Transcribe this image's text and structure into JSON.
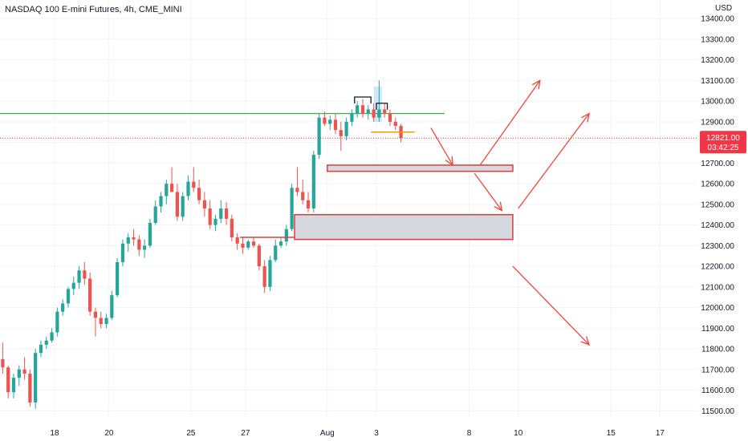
{
  "header": {
    "title": "NASDAQ 100 E-mini Futures, 4h, CME_MINI",
    "currency": "USD"
  },
  "colors": {
    "up": "#26a69a",
    "down": "#ef5350",
    "level": "#4caf50",
    "zone_fill": "#d1d4dc",
    "zone_border": "#e53935",
    "arrow": "#f44336",
    "price_tag": "#f23645"
  },
  "chart_data": {
    "type": "candlestick",
    "title": "NASDAQ 100 E-mini Futures, 4h, CME_MINI",
    "y_axis_labels": [
      "13400.00",
      "13300.00",
      "13200.00",
      "13100.00",
      "13000.00",
      "12900.00",
      "12800.00",
      "12700.00",
      "12600.00",
      "12500.00",
      "12400.00",
      "12300.00",
      "12200.00",
      "12100.00",
      "12000.00",
      "11900.00",
      "11800.00",
      "11700.00",
      "11600.00",
      "11500.00"
    ],
    "y_axis_values": [
      13400,
      13300,
      13200,
      13100,
      13000,
      12900,
      12800,
      12700,
      12600,
      12500,
      12400,
      12300,
      12200,
      12100,
      12000,
      11900,
      11800,
      11700,
      11600,
      11500
    ],
    "ylim": [
      11470,
      13490
    ],
    "x_tick_labels": [
      "18",
      "20",
      "25",
      "27",
      "Aug",
      "3",
      "8",
      "10",
      "15",
      "17"
    ],
    "x_tick_positions": [
      10,
      20,
      35,
      45,
      60,
      69,
      86,
      95,
      112,
      121
    ],
    "xlim": [
      0,
      128
    ],
    "current_price": "12821.00",
    "countdown": "03:42:25",
    "candles": [
      [
        11750,
        11830,
        11680,
        11710
      ],
      [
        11710,
        11720,
        11560,
        11590
      ],
      [
        11590,
        11680,
        11560,
        11660
      ],
      [
        11660,
        11720,
        11620,
        11700
      ],
      [
        11700,
        11760,
        11650,
        11680
      ],
      [
        11680,
        11700,
        11520,
        11540
      ],
      [
        11540,
        11800,
        11510,
        11780
      ],
      [
        11780,
        11840,
        11760,
        11820
      ],
      [
        11820,
        11860,
        11800,
        11840
      ],
      [
        11840,
        11900,
        11830,
        11880
      ],
      [
        11880,
        12000,
        11860,
        11980
      ],
      [
        11980,
        12040,
        11960,
        12020
      ],
      [
        12020,
        12100,
        12000,
        12090
      ],
      [
        12090,
        12150,
        12060,
        12120
      ],
      [
        12120,
        12200,
        12090,
        12180
      ],
      [
        12180,
        12220,
        12110,
        12140
      ],
      [
        12140,
        12170,
        11960,
        11980
      ],
      [
        11980,
        12000,
        11860,
        11950
      ],
      [
        11950,
        11980,
        11900,
        11920
      ],
      [
        11920,
        11970,
        11900,
        11950
      ],
      [
        11950,
        12080,
        11940,
        12060
      ],
      [
        12060,
        12240,
        12050,
        12220
      ],
      [
        12220,
        12330,
        12200,
        12310
      ],
      [
        12310,
        12360,
        12270,
        12340
      ],
      [
        12340,
        12380,
        12300,
        12330
      ],
      [
        12330,
        12350,
        12250,
        12280
      ],
      [
        12280,
        12330,
        12240,
        12300
      ],
      [
        12300,
        12430,
        12290,
        12410
      ],
      [
        12410,
        12520,
        12400,
        12490
      ],
      [
        12490,
        12560,
        12460,
        12540
      ],
      [
        12540,
        12620,
        12500,
        12600
      ],
      [
        12600,
        12680,
        12560,
        12560
      ],
      [
        12560,
        12600,
        12420,
        12440
      ],
      [
        12440,
        12560,
        12420,
        12540
      ],
      [
        12540,
        12640,
        12520,
        12610
      ],
      [
        12610,
        12680,
        12560,
        12580
      ],
      [
        12580,
        12620,
        12500,
        12520
      ],
      [
        12520,
        12560,
        12440,
        12480
      ],
      [
        12480,
        12520,
        12380,
        12400
      ],
      [
        12400,
        12450,
        12370,
        12430
      ],
      [
        12430,
        12520,
        12410,
        12480
      ],
      [
        12480,
        12510,
        12400,
        12430
      ],
      [
        12430,
        12450,
        12320,
        12340
      ],
      [
        12340,
        12360,
        12280,
        12310
      ],
      [
        12310,
        12340,
        12260,
        12290
      ],
      [
        12290,
        12330,
        12280,
        12320
      ],
      [
        12320,
        12340,
        12290,
        12300
      ],
      [
        12300,
        12310,
        12180,
        12200
      ],
      [
        12200,
        12230,
        12070,
        12100
      ],
      [
        12100,
        12250,
        12080,
        12230
      ],
      [
        12230,
        12330,
        12220,
        12300
      ],
      [
        12300,
        12340,
        12290,
        12320
      ],
      [
        12320,
        12400,
        12300,
        12380
      ],
      [
        12380,
        12600,
        12370,
        12580
      ],
      [
        12580,
        12680,
        12540,
        12560
      ],
      [
        12560,
        12620,
        12500,
        12520
      ],
      [
        12520,
        12560,
        12460,
        12480
      ],
      [
        12480,
        12760,
        12460,
        12740
      ],
      [
        12740,
        12940,
        12720,
        12920
      ],
      [
        12920,
        12950,
        12880,
        12890
      ],
      [
        12890,
        12930,
        12860,
        12910
      ],
      [
        12910,
        12940,
        12840,
        12860
      ],
      [
        12860,
        12900,
        12760,
        12830
      ],
      [
        12830,
        12920,
        12810,
        12900
      ],
      [
        12900,
        12960,
        12880,
        12940
      ],
      [
        12940,
        13000,
        12920,
        12980
      ],
      [
        12980,
        13010,
        12920,
        12940
      ],
      [
        12940,
        12980,
        12910,
        12960
      ],
      [
        12960,
        12990,
        12900,
        12920
      ],
      [
        12920,
        13100,
        12900,
        12960
      ],
      [
        12960,
        12990,
        12920,
        12940
      ],
      [
        12940,
        12960,
        12880,
        12900
      ],
      [
        12900,
        12920,
        12860,
        12880
      ],
      [
        12880,
        12890,
        12800,
        12821
      ]
    ],
    "candle_index_offset": 0,
    "horizontal_level": 12940,
    "zones": [
      {
        "x0": 60,
        "x1": 94,
        "y0": 12660,
        "y1": 12690
      },
      {
        "x0": 54,
        "x1": 94,
        "y0": 12330,
        "y1": 12450
      }
    ],
    "red_lines": [
      {
        "x0": 44,
        "x1": 54,
        "y": 12340
      },
      {
        "x0": 68,
        "x1": 76,
        "y": 12850
      }
    ],
    "black_marks": [
      {
        "x0": 65,
        "x1": 68,
        "y": 13020
      },
      {
        "x0": 69,
        "x1": 71,
        "y": 12990
      }
    ],
    "highlight": {
      "x0": 68.5,
      "x1": 70,
      "y0": 12900,
      "y1": 13070
    },
    "arrows": [
      {
        "x0": 79,
        "y0": 12870,
        "x1": 83,
        "y1": 12690
      },
      {
        "x0": 88,
        "y0": 12690,
        "x1": 99,
        "y1": 13100
      },
      {
        "x0": 87,
        "y0": 12650,
        "x1": 92,
        "y1": 12470
      },
      {
        "x0": 95,
        "y0": 12480,
        "x1": 108,
        "y1": 12940
      },
      {
        "x0": 94,
        "y0": 12200,
        "x1": 108,
        "y1": 11820
      }
    ]
  }
}
